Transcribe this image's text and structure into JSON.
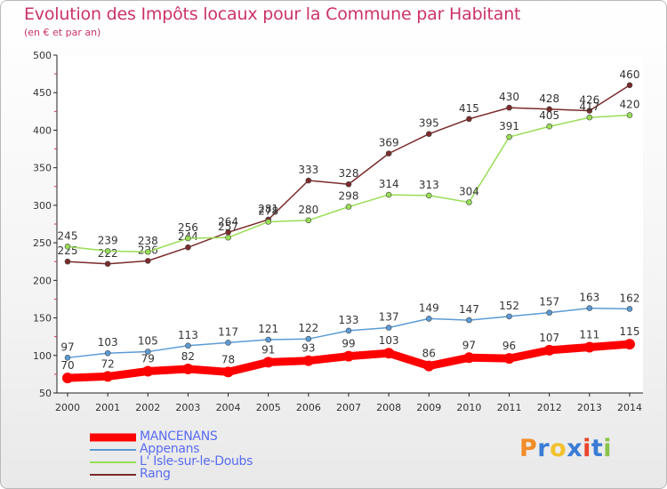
{
  "header": {
    "title": "Evolution des Impôts locaux pour la Commune par Habitant",
    "subtitle": "(en € et par an)"
  },
  "chart_data": {
    "type": "line",
    "title": "Evolution des Impôts locaux pour la Commune par Habitant",
    "subtitle": "(en € et par an)",
    "xlabel": "",
    "ylabel": "",
    "ylim": [
      50,
      500
    ],
    "yticks": [
      50,
      100,
      150,
      200,
      250,
      300,
      350,
      400,
      450,
      500
    ],
    "x": [
      "2000",
      "2001",
      "2002",
      "2003",
      "2004",
      "2005",
      "2006",
      "2007",
      "2008",
      "2009",
      "2010",
      "2011",
      "2012",
      "2013",
      "2014"
    ],
    "grid": false,
    "legend_position": "bottom-left",
    "series": [
      {
        "name": "MANCENANS",
        "color": "#ff0000",
        "values": [
          70,
          72,
          79,
          82,
          78,
          91,
          93,
          99,
          103,
          86,
          97,
          96,
          107,
          111,
          115
        ]
      },
      {
        "name": "Appenans",
        "color": "#5b9bd5",
        "values": [
          97,
          103,
          105,
          113,
          117,
          121,
          122,
          133,
          137,
          149,
          147,
          152,
          157,
          163,
          162
        ]
      },
      {
        "name": "L' Isle-sur-le-Doubs",
        "color": "#99dd55",
        "values": [
          245,
          239,
          238,
          256,
          257,
          278,
          280,
          298,
          314,
          313,
          304,
          391,
          405,
          417,
          420
        ]
      },
      {
        "name": "Rang",
        "color": "#7b2b2b",
        "values": [
          225,
          222,
          226,
          244,
          264,
          281,
          333,
          328,
          369,
          395,
          415,
          430,
          428,
          426,
          460
        ]
      }
    ]
  },
  "legend": {
    "items": [
      {
        "label": "MANCENANS",
        "color": "#ff0000"
      },
      {
        "label": "Appenans",
        "color": "#5b9bd5"
      },
      {
        "label": "L' Isle-sur-le-Doubs",
        "color": "#99dd55"
      },
      {
        "label": "Rang",
        "color": "#7b2b2b"
      }
    ]
  },
  "logo": {
    "letters": [
      "P",
      "r",
      "o",
      "x",
      "i",
      "t",
      "i"
    ],
    "colors": [
      "#f28c28",
      "#3a7bd5",
      "#f2c12e",
      "#3a7bd5",
      "#e8452c",
      "#3a7bd5",
      "#8bc34a"
    ]
  }
}
